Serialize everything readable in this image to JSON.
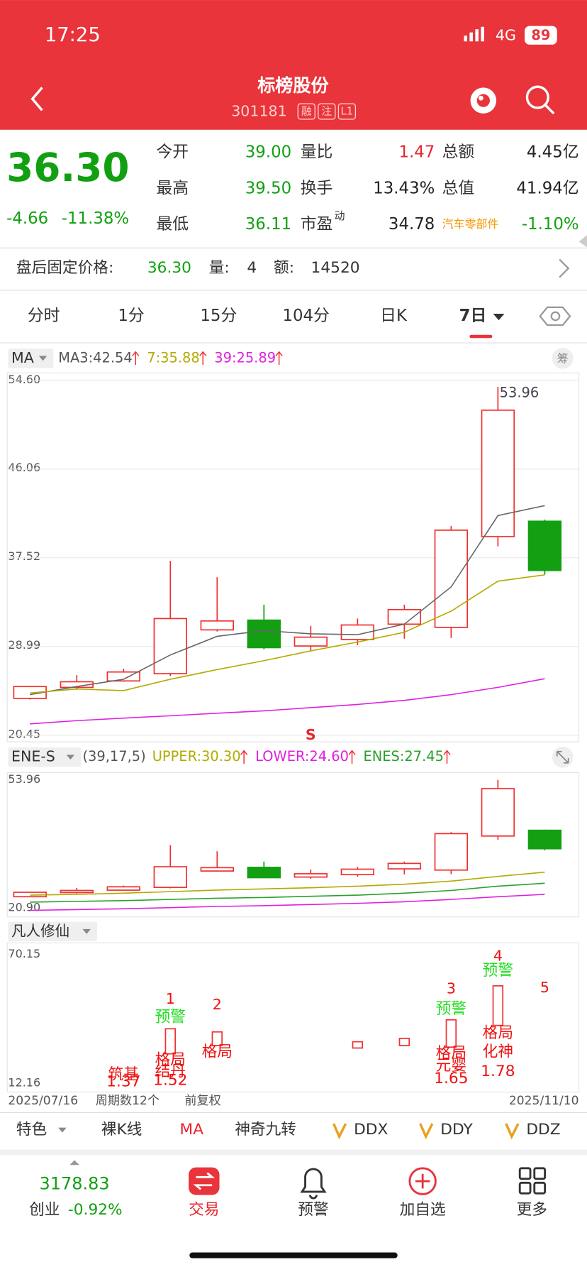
{
  "status_bar": {
    "time": "17:25",
    "network": "4G",
    "battery": "89"
  },
  "header": {
    "title": "标榜股份",
    "code": "301181",
    "tags": [
      "融",
      "注",
      "L1"
    ]
  },
  "quote": {
    "price": "36.30",
    "change": "-4.66",
    "change_pct": "-11.38%",
    "fields": [
      {
        "label": "今开",
        "value": "39.00",
        "color": "#12a012"
      },
      {
        "label": "量比",
        "value": "1.47",
        "color": "#e8262f"
      },
      {
        "label": "总额",
        "value": "4.45亿",
        "color": "#222222"
      },
      {
        "label": "最高",
        "value": "39.50",
        "color": "#12a012"
      },
      {
        "label": "换手",
        "value": "13.43%",
        "color": "#222222"
      },
      {
        "label": "总值",
        "value": "41.94亿",
        "color": "#222222"
      },
      {
        "label": "最低",
        "value": "36.11",
        "color": "#12a012"
      },
      {
        "label": "市盈",
        "label_sup": "动",
        "value": "34.78",
        "color": "#222222"
      },
      {
        "label": "汽车零部件",
        "label_color": "#f39800",
        "value": "-1.10%",
        "color": "#12a012"
      }
    ]
  },
  "after_hours": {
    "label": "盘后固定价格:",
    "price": "36.30",
    "volume_label": "量:",
    "volume": "4",
    "amount_label": "额:",
    "amount": "14520"
  },
  "tabs": [
    "分时",
    "1分",
    "15分",
    "104分",
    "日K",
    "7日"
  ],
  "chart_data": [
    {
      "type": "candlestick",
      "indicator": "MA",
      "grid": true,
      "legend": [
        {
          "text": "MA3:42.54",
          "color": "#555555"
        },
        {
          "text": "7:35.88",
          "color": "#b3aa00"
        },
        {
          "text": "39:25.89",
          "color": "#e020e0"
        }
      ],
      "ylim": [
        20.45,
        54.6
      ],
      "yticks": [
        20.45,
        28.99,
        37.52,
        46.06,
        {
          "value": 54.6,
          "label": "54.60"
        }
      ],
      "up_color": "#f03030",
      "down_color": "#12a012",
      "candles": [
        {
          "open": 24.0,
          "high": 25.2,
          "low": 23.9,
          "close": 25.14
        },
        {
          "open": 25.06,
          "high": 26.23,
          "low": 24.83,
          "close": 25.6
        },
        {
          "open": 25.68,
          "high": 26.85,
          "low": 25.6,
          "close": 26.54
        },
        {
          "open": 26.38,
          "high": 37.22,
          "low": 26.15,
          "close": 31.68
        },
        {
          "open": 30.59,
          "high": 35.66,
          "low": 30.44,
          "close": 31.45
        },
        {
          "open": 31.53,
          "high": 33.01,
          "low": 28.72,
          "close": 28.88
        },
        {
          "open": 29.04,
          "high": 30.98,
          "low": 28.57,
          "close": 29.89
        },
        {
          "open": 29.66,
          "high": 31.68,
          "low": 29.11,
          "close": 31.06
        },
        {
          "open": 31.14,
          "high": 33.01,
          "low": 29.74,
          "close": 32.54
        },
        {
          "open": 30.83,
          "high": 40.57,
          "low": 29.81,
          "close": 40.18
        },
        {
          "open": 39.56,
          "high": 53.96,
          "low": 38.62,
          "close": 51.72
        },
        {
          "open": 41.04,
          "high": 41.2,
          "low": 35.9,
          "close": 36.3
        }
      ],
      "series": [
        {
          "color": "#666666",
          "values": [
            24.36,
            25.14,
            25.84,
            28.18,
            29.97,
            30.52,
            30.21,
            30.13,
            31.14,
            34.72,
            41.58,
            42.54
          ]
        },
        {
          "color": "#b3aa00",
          "values": [
            24.52,
            24.9,
            24.75,
            25.84,
            26.77,
            27.63,
            28.57,
            29.42,
            30.36,
            32.39,
            35.27,
            35.88
          ]
        },
        {
          "color": "#e020e0",
          "values": [
            21.55,
            21.86,
            22.1,
            22.33,
            22.57,
            22.8,
            23.11,
            23.42,
            23.81,
            24.36,
            25.06,
            25.89
          ]
        }
      ],
      "annotations": [
        {
          "text": "53.96",
          "index": 10,
          "value": 53.96
        },
        {
          "text": "S",
          "index": 6
        }
      ]
    },
    {
      "type": "candlestick",
      "indicator": "ENE-S",
      "params": "(39,17,5)",
      "legend": [
        {
          "text": "UPPER:30.30",
          "color": "#b3aa00"
        },
        {
          "text": "LOWER:24.60",
          "color": "#e020e0"
        },
        {
          "text": "ENES:27.45",
          "color": "#2aa02a"
        }
      ],
      "ylim": [
        20.9,
        53.96
      ],
      "yticks": [
        {
          "value": 20.9,
          "label": "20.90"
        },
        53.96
      ],
      "series": [
        {
          "color": "#b3aa00",
          "values": [
            24.4,
            24.6,
            24.9,
            25.3,
            25.7,
            26.0,
            26.3,
            26.7,
            27.2,
            28.0,
            29.2,
            30.3
          ]
        },
        {
          "color": "#2aa02a",
          "values": [
            22.6,
            22.8,
            23.0,
            23.3,
            23.6,
            23.8,
            24.1,
            24.4,
            24.9,
            25.6,
            26.7,
            27.45
          ]
        },
        {
          "color": "#e020e0",
          "values": [
            20.5,
            20.7,
            20.9,
            21.2,
            21.5,
            21.7,
            22.0,
            22.3,
            22.7,
            23.3,
            24.0,
            24.6
          ]
        }
      ]
    },
    {
      "type": "signal",
      "indicator": "凡人修仙",
      "ylim": [
        12.16,
        70.15
      ],
      "yticks": [
        12.16,
        70.15
      ],
      "boxes": [
        {
          "index": 3,
          "high": 36.8,
          "low": 25.6
        },
        {
          "index": 4,
          "high": 35.4,
          "low": 29.3
        },
        {
          "index": 7,
          "high": 31.0,
          "low": 28.2
        },
        {
          "index": 8,
          "high": 32.5,
          "low": 29.3
        },
        {
          "index": 9,
          "high": 40.8,
          "low": 28.6
        },
        {
          "index": 10,
          "high": 56.0,
          "low": 38.3
        }
      ],
      "signals": [
        {
          "index": 2,
          "lines": [
            "筑基",
            "1.37"
          ]
        },
        {
          "index": 3,
          "number": "1",
          "warning": "预警",
          "lines": [
            "格局",
            "结丹",
            "1.52"
          ]
        },
        {
          "index": 4,
          "number": "2",
          "lines": [
            "格局"
          ]
        },
        {
          "index": 9,
          "number": "3",
          "warning": "预警",
          "lines": [
            "格局",
            "元婴",
            "1.65"
          ]
        },
        {
          "index": 10,
          "number": "4",
          "warning": "预警",
          "lines": [
            "格局",
            "化神",
            "1.78"
          ]
        },
        {
          "index": 11,
          "number": "5"
        }
      ],
      "x_labels": [
        "2025/07/16",
        "周期数12个",
        "前复权",
        "2025/11/10"
      ]
    }
  ],
  "toolbar": [
    "特色",
    "裸K线",
    "MA",
    "神奇九转",
    "DDX",
    "DDY",
    "DDZ"
  ],
  "nav": {
    "index_value": "3178.83",
    "index_name": "创业",
    "index_change": "-0.92%",
    "items": [
      "交易",
      "预警",
      "加自选",
      "更多"
    ]
  }
}
